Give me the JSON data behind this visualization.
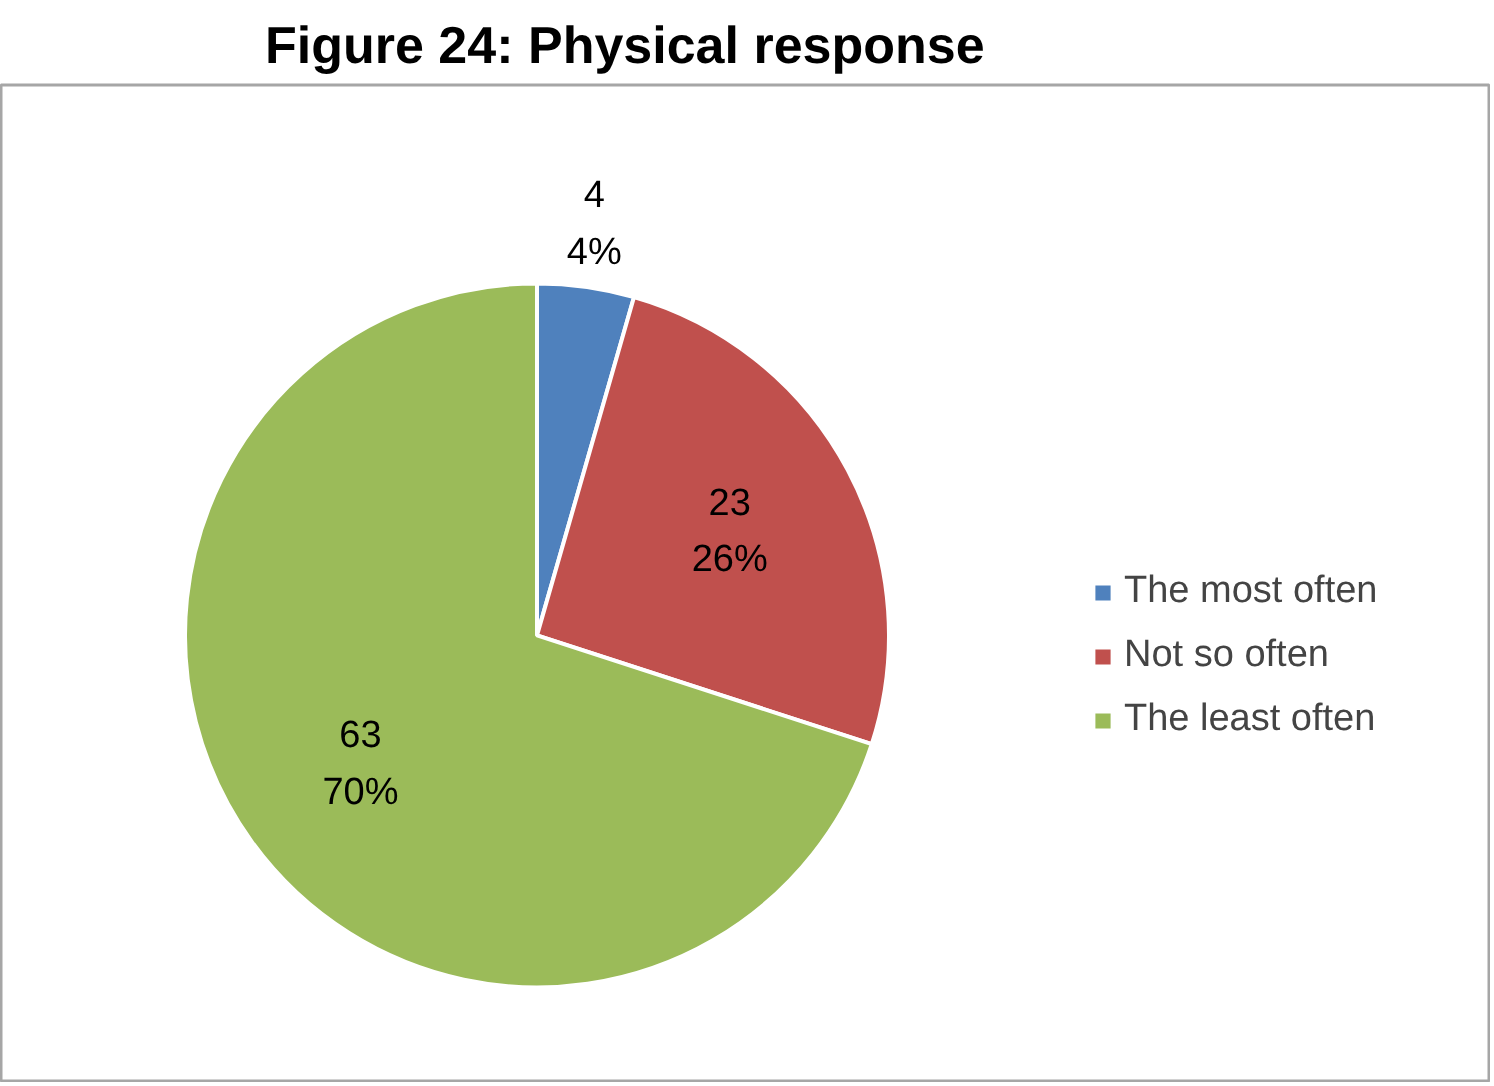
{
  "chart_data": {
    "type": "pie",
    "title": "Figure 24: Physical response",
    "categories": [
      "The most often",
      "Not so often",
      "The least often"
    ],
    "values": [
      4,
      23,
      63
    ],
    "colors": [
      "#4f81bd",
      "#c0504d",
      "#9bbb59"
    ],
    "value_labels": [
      "4\n4%",
      "23\n26%",
      "63\n70%"
    ],
    "legend": "right"
  }
}
